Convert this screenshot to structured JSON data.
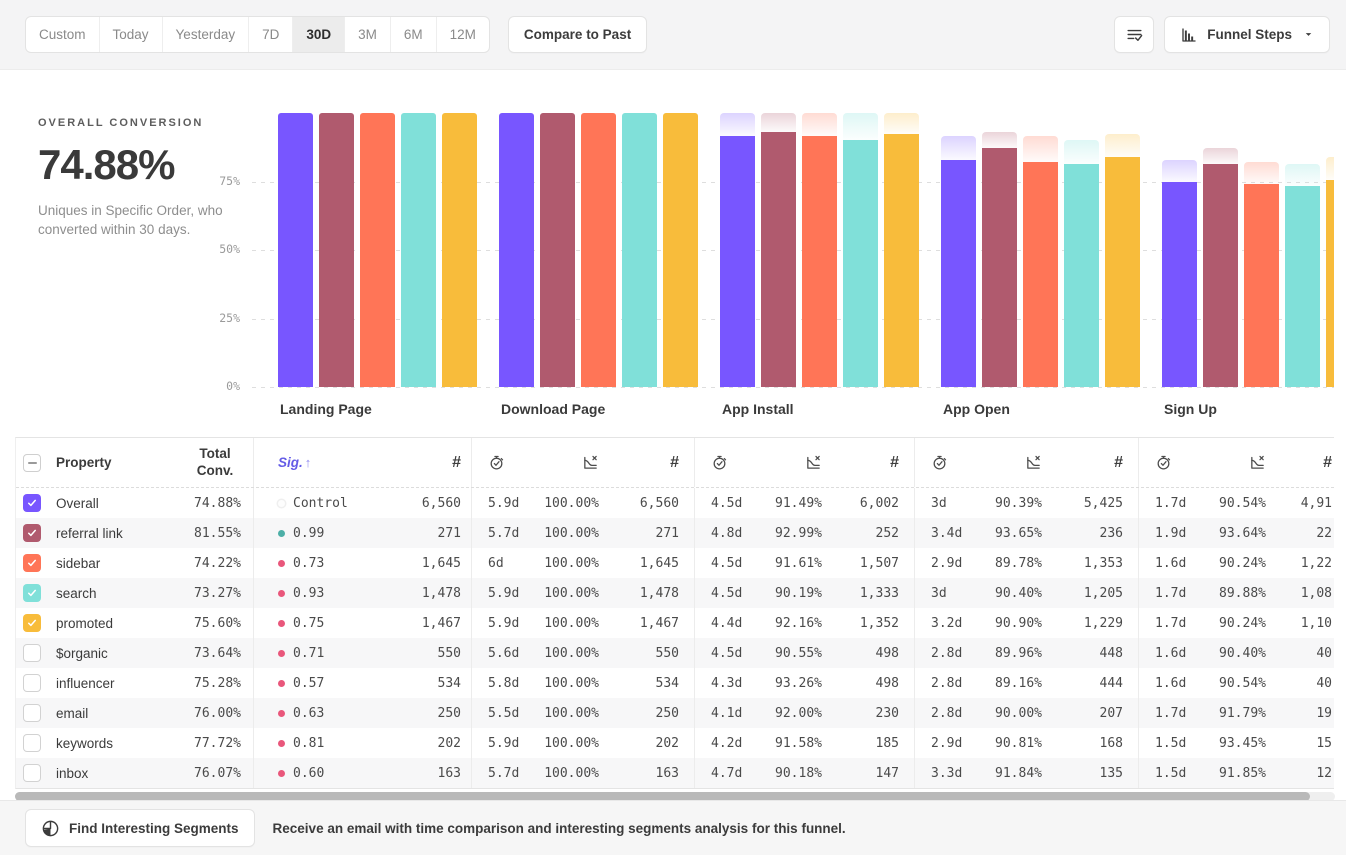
{
  "toolbar": {
    "date_ranges": [
      {
        "label": "Custom",
        "icon": "calendar-icon"
      },
      {
        "label": "Today"
      },
      {
        "label": "Yesterday"
      },
      {
        "label": "7D"
      },
      {
        "label": "30D"
      },
      {
        "label": "3M"
      },
      {
        "label": "6M"
      },
      {
        "label": "12M"
      }
    ],
    "selected_range": "30D",
    "compare_label": "Compare to Past",
    "view_options_icon": "filter-check-icon",
    "chart_type": {
      "label": "Funnel Steps",
      "icon": "bar-chart-icon",
      "caret_icon": "chevron-down-icon"
    }
  },
  "summary": {
    "title": "OVERALL CONVERSION",
    "value": "74.88%",
    "description": "Uniques in Specific Order, who converted within 30 days."
  },
  "chart_data": {
    "type": "bar",
    "categories": [
      "Landing Page",
      "Download Page",
      "App Install",
      "App Open",
      "Sign Up"
    ],
    "ylim": [
      0,
      100
    ],
    "yticks": [
      75,
      50,
      25,
      0
    ],
    "ytick_labels": [
      "75%",
      "50%",
      "25%",
      "0%"
    ],
    "grid": "dashed-horizontal",
    "legend_position": "none",
    "series": [
      {
        "name": "Overall",
        "color": "#7856FF",
        "values": [
          100,
          100,
          91.49,
          82.7,
          74.88
        ]
      },
      {
        "name": "referral link",
        "color": "#B05A6E",
        "values": [
          100,
          100,
          92.99,
          87.08,
          81.55
        ]
      },
      {
        "name": "sidebar",
        "color": "#FF7557",
        "values": [
          100,
          100,
          91.61,
          82.25,
          74.22
        ]
      },
      {
        "name": "search",
        "color": "#80E0D9",
        "values": [
          100,
          100,
          90.19,
          81.53,
          73.27
        ]
      },
      {
        "name": "promoted",
        "color": "#F8BC3B",
        "values": [
          100,
          100,
          92.16,
          83.77,
          75.6
        ]
      }
    ]
  },
  "table": {
    "property_header": "Property",
    "total_header": "Total Conv.",
    "sig_header": "Sig.",
    "sort_arrow": "↑",
    "count_symbol": "#",
    "group_header_icons": [
      "time-to-convert-icon",
      "conversion-rate-icon",
      "count-icon"
    ],
    "rows": [
      {
        "property": "Overall",
        "checked": true,
        "color": "#7856FF",
        "total": "74.88%",
        "sig": "Control",
        "dot": "control",
        "landing_count": "6,560",
        "steps": [
          {
            "time": "5.9d",
            "rate": "100.00%",
            "count": "6,560"
          },
          {
            "time": "4.5d",
            "rate": "91.49%",
            "count": "6,002"
          },
          {
            "time": "3d",
            "rate": "90.39%",
            "count": "5,425"
          },
          {
            "time": "1.7d",
            "rate": "90.54%",
            "count": "4,91"
          }
        ]
      },
      {
        "property": "referral link",
        "checked": true,
        "color": "#B05A6E",
        "total": "81.55%",
        "sig": "0.99",
        "dot": "teal",
        "landing_count": "271",
        "steps": [
          {
            "time": "5.7d",
            "rate": "100.00%",
            "count": "271"
          },
          {
            "time": "4.8d",
            "rate": "92.99%",
            "count": "252"
          },
          {
            "time": "3.4d",
            "rate": "93.65%",
            "count": "236"
          },
          {
            "time": "1.9d",
            "rate": "93.64%",
            "count": "22"
          }
        ]
      },
      {
        "property": "sidebar",
        "checked": true,
        "color": "#FF7557",
        "total": "74.22%",
        "sig": "0.73",
        "dot": "rose",
        "landing_count": "1,645",
        "steps": [
          {
            "time": "6d",
            "rate": "100.00%",
            "count": "1,645"
          },
          {
            "time": "4.5d",
            "rate": "91.61%",
            "count": "1,507"
          },
          {
            "time": "2.9d",
            "rate": "89.78%",
            "count": "1,353"
          },
          {
            "time": "1.6d",
            "rate": "90.24%",
            "count": "1,22"
          }
        ]
      },
      {
        "property": "search",
        "checked": true,
        "color": "#80E0D9",
        "total": "73.27%",
        "sig": "0.93",
        "dot": "rose",
        "landing_count": "1,478",
        "steps": [
          {
            "time": "5.9d",
            "rate": "100.00%",
            "count": "1,478"
          },
          {
            "time": "4.5d",
            "rate": "90.19%",
            "count": "1,333"
          },
          {
            "time": "3d",
            "rate": "90.40%",
            "count": "1,205"
          },
          {
            "time": "1.7d",
            "rate": "89.88%",
            "count": "1,08"
          }
        ]
      },
      {
        "property": "promoted",
        "checked": true,
        "color": "#F8BC3B",
        "total": "75.60%",
        "sig": "0.75",
        "dot": "rose",
        "landing_count": "1,467",
        "steps": [
          {
            "time": "5.9d",
            "rate": "100.00%",
            "count": "1,467"
          },
          {
            "time": "4.4d",
            "rate": "92.16%",
            "count": "1,352"
          },
          {
            "time": "3.2d",
            "rate": "90.90%",
            "count": "1,229"
          },
          {
            "time": "1.7d",
            "rate": "90.24%",
            "count": "1,10"
          }
        ]
      },
      {
        "property": "$organic",
        "checked": false,
        "total": "73.64%",
        "sig": "0.71",
        "dot": "rose",
        "landing_count": "550",
        "steps": [
          {
            "time": "5.6d",
            "rate": "100.00%",
            "count": "550"
          },
          {
            "time": "4.5d",
            "rate": "90.55%",
            "count": "498"
          },
          {
            "time": "2.8d",
            "rate": "89.96%",
            "count": "448"
          },
          {
            "time": "1.6d",
            "rate": "90.40%",
            "count": "40"
          }
        ]
      },
      {
        "property": "influencer",
        "checked": false,
        "total": "75.28%",
        "sig": "0.57",
        "dot": "rose",
        "landing_count": "534",
        "steps": [
          {
            "time": "5.8d",
            "rate": "100.00%",
            "count": "534"
          },
          {
            "time": "4.3d",
            "rate": "93.26%",
            "count": "498"
          },
          {
            "time": "2.8d",
            "rate": "89.16%",
            "count": "444"
          },
          {
            "time": "1.6d",
            "rate": "90.54%",
            "count": "40"
          }
        ]
      },
      {
        "property": "email",
        "checked": false,
        "total": "76.00%",
        "sig": "0.63",
        "dot": "rose",
        "landing_count": "250",
        "steps": [
          {
            "time": "5.5d",
            "rate": "100.00%",
            "count": "250"
          },
          {
            "time": "4.1d",
            "rate": "92.00%",
            "count": "230"
          },
          {
            "time": "2.8d",
            "rate": "90.00%",
            "count": "207"
          },
          {
            "time": "1.7d",
            "rate": "91.79%",
            "count": "19"
          }
        ]
      },
      {
        "property": "keywords",
        "checked": false,
        "total": "77.72%",
        "sig": "0.81",
        "dot": "rose",
        "landing_count": "202",
        "steps": [
          {
            "time": "5.9d",
            "rate": "100.00%",
            "count": "202"
          },
          {
            "time": "4.2d",
            "rate": "91.58%",
            "count": "185"
          },
          {
            "time": "2.9d",
            "rate": "90.81%",
            "count": "168"
          },
          {
            "time": "1.5d",
            "rate": "93.45%",
            "count": "15"
          }
        ]
      },
      {
        "property": "inbox",
        "checked": false,
        "total": "76.07%",
        "sig": "0.60",
        "dot": "rose",
        "landing_count": "163",
        "steps": [
          {
            "time": "5.7d",
            "rate": "100.00%",
            "count": "163"
          },
          {
            "time": "4.7d",
            "rate": "90.18%",
            "count": "147"
          },
          {
            "time": "3.3d",
            "rate": "91.84%",
            "count": "135"
          },
          {
            "time": "1.5d",
            "rate": "91.85%",
            "count": "12"
          }
        ]
      }
    ]
  },
  "footer": {
    "button": "Find Interesting Segments",
    "button_icon": "segment-icon",
    "message": "Receive an email with time comparison and interesting segments analysis for this funnel."
  }
}
